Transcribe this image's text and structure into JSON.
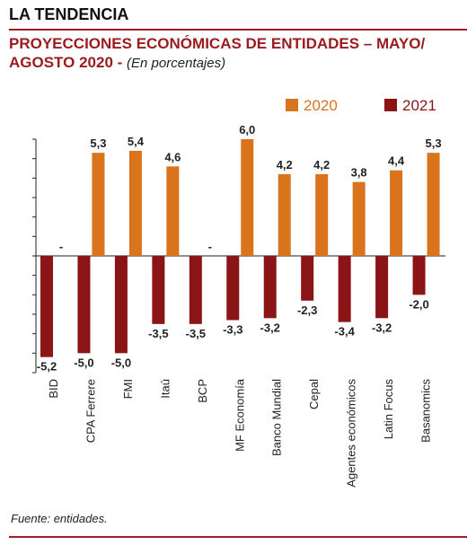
{
  "header": "LA TENDENCIA",
  "chart_data": {
    "type": "bar",
    "title": [
      "PROYECCIONES ECONÓMICAS DE ENTIDADES – MAYO/",
      "AGOSTO 2020 -"
    ],
    "subtitle": "(En porcentajes)",
    "categories": [
      "BID",
      "CPA Ferrere",
      "FMI",
      "Itaú",
      "BCP",
      "MF Economía",
      "Banco Mundial",
      "Cepal",
      "Agentes económicos",
      "Latin Focus",
      "Basanomics"
    ],
    "series": [
      {
        "name": "2021",
        "color": "#8b1416",
        "values": [
          -5.2,
          -5.0,
          -5.0,
          -3.5,
          -3.5,
          -3.3,
          -3.2,
          -2.3,
          -3.4,
          -3.2,
          -2.0
        ],
        "value_labels": [
          "-5,2",
          "-5,0",
          "-5,0",
          "-3,5",
          "-3,5",
          "-3,3",
          "-3,2",
          "-2,3",
          "-3,4",
          "-3,2",
          "-2,0"
        ]
      },
      {
        "name": "2020",
        "color": "#d9741c",
        "values": [
          null,
          5.3,
          5.4,
          4.6,
          null,
          6.0,
          4.2,
          4.2,
          3.8,
          4.4,
          5.3
        ],
        "value_labels": [
          "-",
          "5,3",
          "5,4",
          "4,6",
          "-",
          "6,0",
          "4,2",
          "4,2",
          "3,8",
          "4,4",
          "5,3"
        ]
      }
    ],
    "ylim": [
      -6,
      6
    ],
    "yticks": [
      -6,
      -5,
      -4,
      -3,
      -2,
      -1,
      0,
      1,
      2,
      3,
      4,
      5,
      6
    ],
    "legend": "top-right",
    "source": "Fuente: entidades."
  }
}
